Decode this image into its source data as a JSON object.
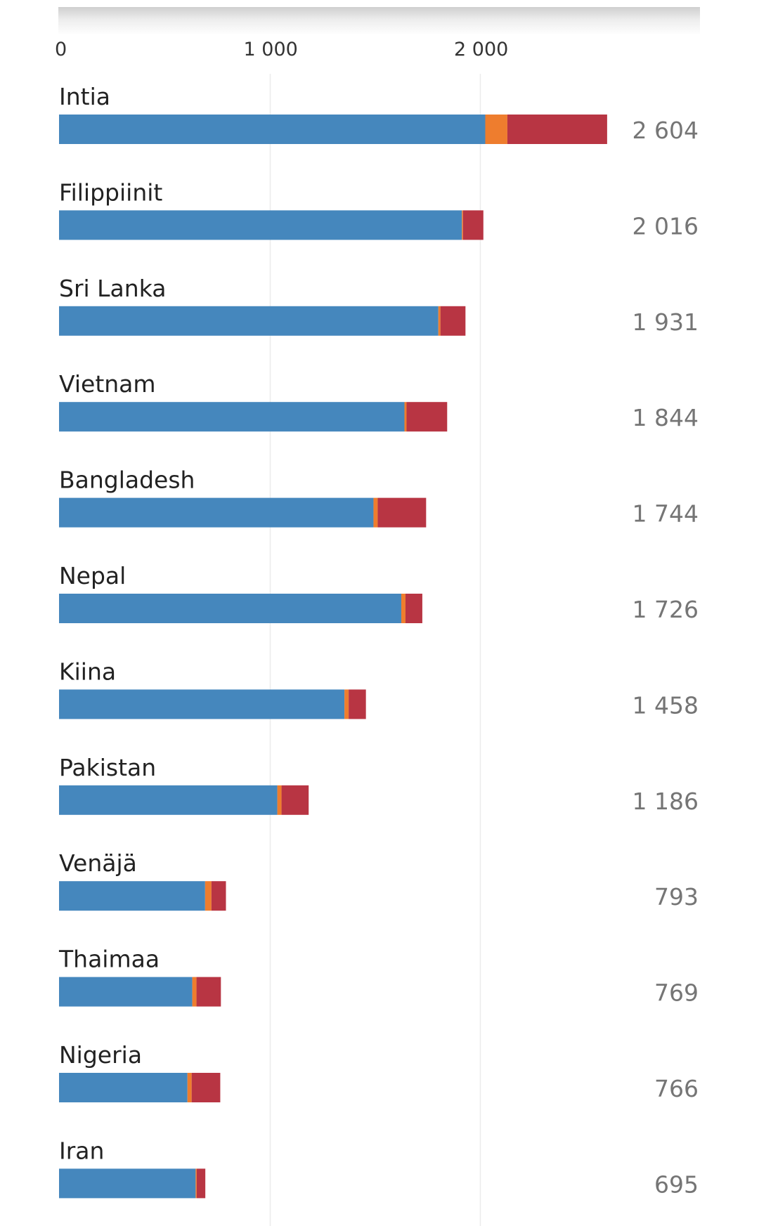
{
  "chart_data": {
    "type": "bar",
    "orientation": "horizontal",
    "stacked": true,
    "title": "",
    "xlabel": "",
    "ylabel": "",
    "xlim": [
      0,
      2800
    ],
    "x_ticks": [
      0,
      1000,
      2000
    ],
    "x_tick_labels": [
      "0",
      "1 000",
      "2 000"
    ],
    "grid": true,
    "legend": "none",
    "categories": [
      "Intia",
      "Filippiinit",
      "Sri Lanka",
      "Vietnam",
      "Bangladesh",
      "Nepal",
      "Kiina",
      "Pakistan",
      "Venäjä",
      "Thaimaa",
      "Nigeria",
      "Iran"
    ],
    "totals_labels": [
      "2 604",
      "2 016",
      "1 931",
      "1 844",
      "1 744",
      "1 726",
      "1 458",
      "1 186",
      "793",
      "769",
      "766",
      "695"
    ],
    "series": [
      {
        "color": "#4587bd",
        "values": [
          2025,
          1914,
          1802,
          1641,
          1494,
          1626,
          1356,
          1037,
          694,
          633,
          610,
          649
        ]
      },
      {
        "color": "#ee7d2e",
        "values": [
          105,
          5,
          10,
          10,
          20,
          20,
          20,
          20,
          30,
          20,
          20,
          5
        ]
      },
      {
        "color": "#b83543",
        "values": [
          474,
          97,
          119,
          193,
          230,
          80,
          82,
          129,
          69,
          116,
          136,
          41
        ]
      }
    ]
  }
}
